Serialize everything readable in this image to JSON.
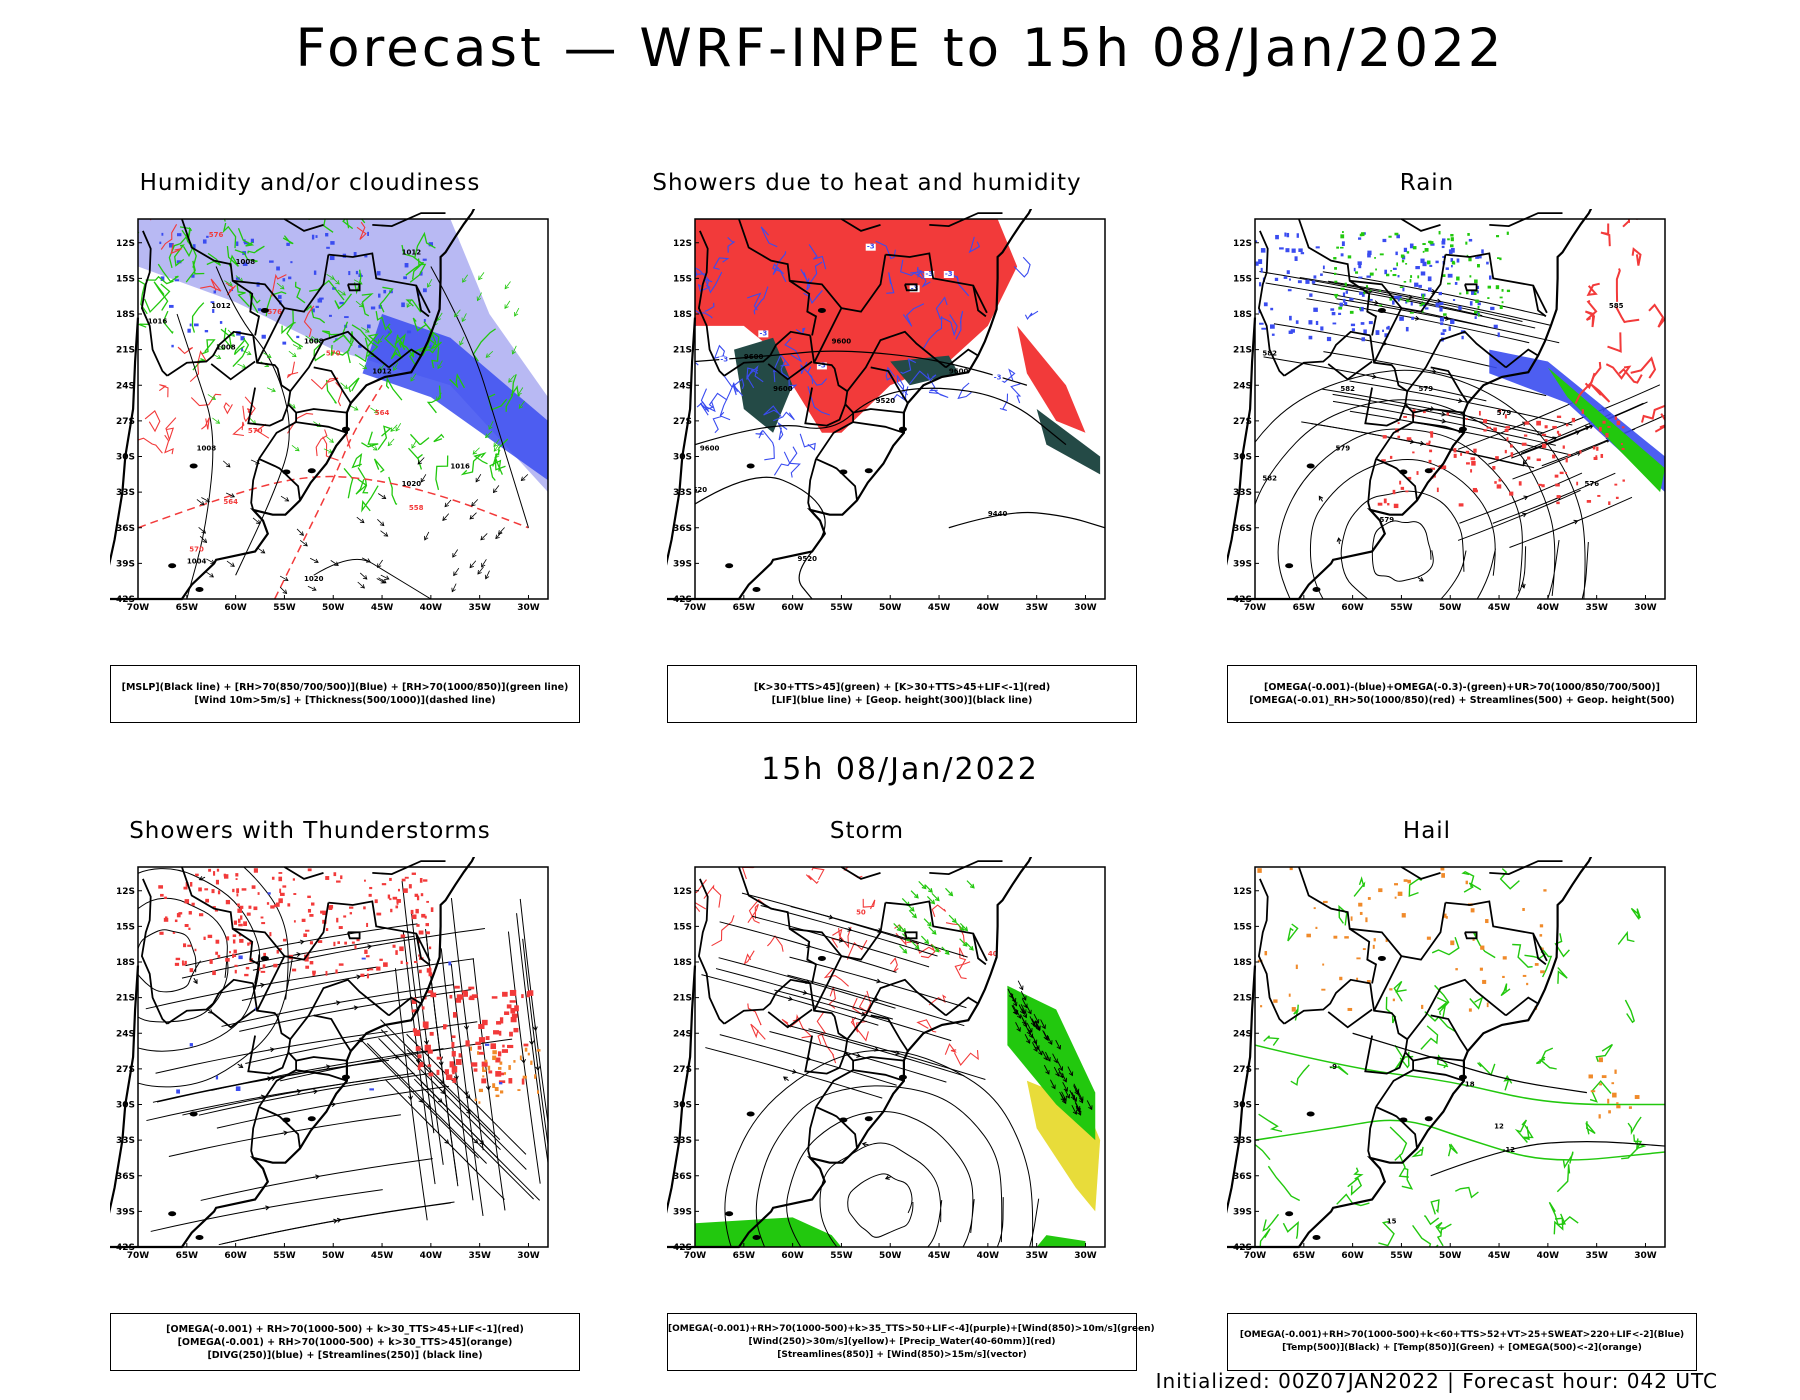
{
  "title": "Forecast — WRF-INPE to 15h 08/Jan/2022",
  "mid_title": "15h 08/Jan/2022",
  "footer": {
    "initialized": "Initialized: 00Z07JAN2022",
    "separator": " | ",
    "forecast_hour": "Forecast hour: 042 UTC"
  },
  "axes": {
    "lat_labels": [
      "12S",
      "15S",
      "18S",
      "21S",
      "24S",
      "27S",
      "30S",
      "33S",
      "36S",
      "39S",
      "42S"
    ],
    "lon_labels": [
      "70W",
      "65W",
      "60W",
      "55W",
      "50W",
      "45W",
      "40W",
      "35W",
      "30W"
    ]
  },
  "colors": {
    "red": "#f23a3a",
    "blue": "#3a4cf0",
    "lavender": "#a6a8f0",
    "green": "#22c80e",
    "darkteal": "#244a46",
    "orange": "#f08a2a",
    "yellow": "#e8dc3a",
    "purple": "#8a3ae0"
  },
  "panels": [
    {
      "title": "Humidity and/or cloudiness",
      "legend": [
        "[MSLP](Black line) + [RH>70(850/700/500)](Blue) + [RH>70(1000/850)](green line)",
        "[Wind 10m>5m/s] + [Thickness(500/1000)](dashed line)"
      ],
      "contour_labels": [
        "1008",
        "1012",
        "1016",
        "1020",
        "1004",
        "576",
        "570",
        "564",
        "558"
      ]
    },
    {
      "title": "Showers due to heat and humidity",
      "legend": [
        "[K>30+TTS>45](green) + [K>30+TTS>45+LIF<-1](red)",
        "[LIF](blue line) + [Geop. height(300)](black line)"
      ],
      "contour_labels": [
        "9600",
        "9520",
        "9440",
        "-3"
      ]
    },
    {
      "title": "Rain",
      "legend": [
        "[OMEGA(-0.001)-(blue)+OMEGA(-0.3)-(green)+UR>70(1000/850/700/500)]",
        "[OMEGA(-0.01)_RH>50(1000/850)(red) + Streamlines(500) + Geop. height(500)"
      ],
      "contour_labels": [
        "579",
        "582",
        "585",
        "576",
        "573"
      ]
    },
    {
      "title": "Showers with Thunderstorms",
      "legend": [
        "[OMEGA(-0.001) + RH>70(1000-500) + k>30_TTS>45+LIF<-1](red)",
        "[OMEGA(-0.001) + RH>70(1000-500) + k>30_TTS>45](orange)",
        "[DIVG(250)](blue) + [Streamlines(250)] (black line)"
      ],
      "contour_labels": []
    },
    {
      "title": "Storm",
      "legend": [
        "[OMEGA(-0.001)+RH>70(1000-500)+k>35_TTS>50+LIF<-4](purple)+[Wind(850)>10m/s](green)",
        "[Wind(250)>30m/s](yellow)+ [Precip_Water(40-60mm)](red)",
        "[Streamlines(850)] + [Wind(850)>15m/s](vector)"
      ],
      "contour_labels": [
        "50",
        "40"
      ]
    },
    {
      "title": "Hail",
      "legend": [
        "[OMEGA(-0.001)+RH>70(1000-500)+k<60+TTS>52+VT>25+SWEAT>220+LIF<-2](Blue)",
        "[Temp(500)](Black) + [Temp(850)](Green) + [OMEGA(500)<-2](orange)"
      ],
      "contour_labels": [
        "-12",
        "-9",
        "12",
        "15",
        "18"
      ]
    }
  ]
}
